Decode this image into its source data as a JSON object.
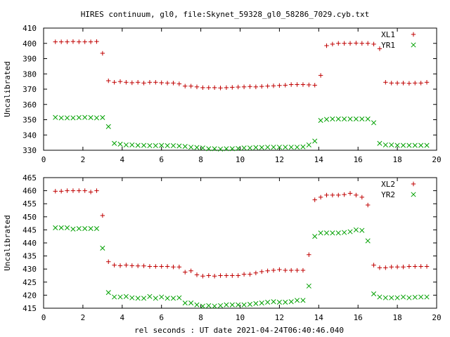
{
  "title": "HIRES continuum, gl0, file:Skynet_59328_gl0_58286_7029.cyb.txt",
  "xlabel": "rel seconds : UT date 2021-04-24T06:40:46.040",
  "colors": {
    "red": "#c00000",
    "green": "#00a000"
  },
  "chart_data": [
    {
      "type": "scatter",
      "ylabel": "Uncalibrated",
      "xlim": [
        0,
        20
      ],
      "ylim": [
        330,
        410
      ],
      "xticks": [
        "0",
        "2",
        "4",
        "6",
        "8",
        "10",
        "12",
        "14",
        "16",
        "18",
        "20"
      ],
      "yticks": [
        "330",
        "340",
        "350",
        "360",
        "370",
        "380",
        "390",
        "400",
        "410"
      ],
      "legend_position": "top-right",
      "series": [
        {
          "name": "XL1",
          "marker": "plus",
          "color": "red",
          "x": [
            0.6,
            0.9,
            1.2,
            1.5,
            1.8,
            2.1,
            2.4,
            2.7,
            3.0,
            3.3,
            3.6,
            3.9,
            4.2,
            4.5,
            4.8,
            5.1,
            5.4,
            5.7,
            6.0,
            6.3,
            6.6,
            6.9,
            7.2,
            7.5,
            7.8,
            8.1,
            8.4,
            8.7,
            9.0,
            9.3,
            9.6,
            9.9,
            10.2,
            10.5,
            10.8,
            11.1,
            11.4,
            11.7,
            12.0,
            12.3,
            12.6,
            12.9,
            13.2,
            13.5,
            13.8,
            14.1,
            14.4,
            14.7,
            15.0,
            15.3,
            15.6,
            15.9,
            16.2,
            16.5,
            16.8,
            17.1,
            17.4,
            17.7,
            18.0,
            18.3,
            18.6,
            18.9,
            19.2,
            19.5
          ],
          "y": [
            401,
            401,
            401,
            401.2,
            401,
            401,
            401,
            401.2,
            393.5,
            375.5,
            374.5,
            375,
            374.5,
            374.2,
            374.5,
            374,
            374.5,
            374.5,
            374.2,
            374,
            374,
            373.5,
            372,
            372,
            371.5,
            371,
            371,
            371,
            370.8,
            371,
            371.2,
            371.4,
            371.5,
            371.7,
            371.5,
            371.8,
            372,
            372.2,
            372.4,
            372.6,
            373,
            373,
            373,
            372.8,
            372.6,
            379,
            398.5,
            399.5,
            400,
            400,
            400,
            400.2,
            400,
            400,
            399.5,
            396.5,
            374.5,
            374,
            374,
            374,
            373.8,
            374,
            374,
            374.5
          ]
        },
        {
          "name": "YR1",
          "marker": "cross",
          "color": "green",
          "x": [
            0.6,
            0.9,
            1.2,
            1.5,
            1.8,
            2.1,
            2.4,
            2.7,
            3.0,
            3.3,
            3.6,
            3.9,
            4.2,
            4.5,
            4.8,
            5.1,
            5.4,
            5.7,
            6.0,
            6.3,
            6.6,
            6.9,
            7.2,
            7.5,
            7.8,
            8.1,
            8.4,
            8.7,
            9.0,
            9.3,
            9.6,
            9.9,
            10.2,
            10.5,
            10.8,
            11.1,
            11.4,
            11.7,
            12.0,
            12.3,
            12.6,
            12.9,
            13.2,
            13.5,
            13.8,
            14.1,
            14.4,
            14.7,
            15.0,
            15.3,
            15.6,
            15.9,
            16.2,
            16.5,
            16.8,
            17.1,
            17.4,
            17.7,
            18.0,
            18.3,
            18.6,
            18.9,
            19.2,
            19.5
          ],
          "y": [
            351.5,
            351.2,
            351.2,
            351.2,
            351.4,
            351.5,
            351.4,
            351.2,
            351.4,
            345.5,
            334.5,
            334,
            333.5,
            333.5,
            333.2,
            333.2,
            333,
            333,
            333.2,
            333,
            333,
            332.8,
            332.5,
            332,
            331.8,
            331.5,
            331,
            331,
            330.8,
            331,
            331,
            331.2,
            331.5,
            331.5,
            331.8,
            331.8,
            332,
            332,
            332,
            332,
            332,
            332,
            332.2,
            333.5,
            336,
            349.5,
            350.2,
            350.5,
            350.5,
            350.5,
            350.5,
            350.5,
            350.5,
            350.5,
            348,
            334.5,
            333.5,
            333.5,
            333.2,
            333.2,
            333.2,
            333.2,
            333.2,
            333.2
          ]
        }
      ]
    },
    {
      "type": "scatter",
      "ylabel": "Uncalibrated",
      "xlim": [
        0,
        20
      ],
      "ylim": [
        415,
        465
      ],
      "xticks": [
        "0",
        "2",
        "4",
        "6",
        "8",
        "10",
        "12",
        "14",
        "16",
        "18",
        "20"
      ],
      "yticks": [
        "415",
        "420",
        "425",
        "430",
        "435",
        "440",
        "445",
        "450",
        "455",
        "460",
        "465"
      ],
      "legend_position": "top-right",
      "series": [
        {
          "name": "XL2",
          "marker": "plus",
          "color": "red",
          "x": [
            0.6,
            0.9,
            1.2,
            1.5,
            1.8,
            2.1,
            2.4,
            2.7,
            3.0,
            3.3,
            3.6,
            3.9,
            4.2,
            4.5,
            4.8,
            5.1,
            5.4,
            5.7,
            6.0,
            6.3,
            6.6,
            6.9,
            7.2,
            7.5,
            7.8,
            8.1,
            8.4,
            8.7,
            9.0,
            9.3,
            9.6,
            9.9,
            10.2,
            10.5,
            10.8,
            11.1,
            11.4,
            11.7,
            12.0,
            12.3,
            12.6,
            12.9,
            13.2,
            13.5,
            13.8,
            14.1,
            14.4,
            14.7,
            15.0,
            15.3,
            15.6,
            15.9,
            16.2,
            16.5,
            16.8,
            17.1,
            17.4,
            17.7,
            18.0,
            18.3,
            18.6,
            18.9,
            19.2,
            19.5
          ],
          "y": [
            459.8,
            459.8,
            460,
            460,
            460,
            460,
            459.5,
            460,
            450.5,
            432.8,
            431.5,
            431.3,
            431.5,
            431.3,
            431.2,
            431.2,
            431,
            431,
            431,
            431,
            430.8,
            430.8,
            428.8,
            429.3,
            427.8,
            427.3,
            427.5,
            427.3,
            427.5,
            427.5,
            427.5,
            427.5,
            428,
            428,
            428.5,
            429,
            429.3,
            429.5,
            429.8,
            429.5,
            429.5,
            429.5,
            429.5,
            435.5,
            456.5,
            457.5,
            458.3,
            458.3,
            458.3,
            458.5,
            459,
            458.3,
            457.5,
            454.5,
            431.5,
            430.5,
            430.5,
            430.8,
            430.8,
            430.8,
            431,
            431,
            431,
            431
          ]
        },
        {
          "name": "YR2",
          "marker": "cross",
          "color": "green",
          "x": [
            0.6,
            0.9,
            1.2,
            1.5,
            1.8,
            2.1,
            2.4,
            2.7,
            3.0,
            3.3,
            3.6,
            3.9,
            4.2,
            4.5,
            4.8,
            5.1,
            5.4,
            5.7,
            6.0,
            6.3,
            6.6,
            6.9,
            7.2,
            7.5,
            7.8,
            8.1,
            8.4,
            8.7,
            9.0,
            9.3,
            9.6,
            9.9,
            10.2,
            10.5,
            10.8,
            11.1,
            11.4,
            11.7,
            12.0,
            12.3,
            12.6,
            12.9,
            13.2,
            13.5,
            13.8,
            14.1,
            14.4,
            14.7,
            15.0,
            15.3,
            15.6,
            15.9,
            16.2,
            16.5,
            16.8,
            17.1,
            17.4,
            17.7,
            18.0,
            18.3,
            18.6,
            18.9,
            19.2,
            19.5
          ],
          "y": [
            445.8,
            445.8,
            445.8,
            445.3,
            445.5,
            445.5,
            445.5,
            445.5,
            438,
            421,
            419.3,
            419.3,
            419.5,
            419,
            418.8,
            418.8,
            419.5,
            418.8,
            419.3,
            418.8,
            418.8,
            419,
            417,
            417,
            416.3,
            415.8,
            416,
            415.8,
            416,
            416.3,
            416.3,
            416.3,
            416.3,
            416.5,
            416.8,
            417,
            417.3,
            417.5,
            417.3,
            417.3,
            417.5,
            418,
            418,
            423.5,
            442.5,
            443.8,
            443.8,
            443.8,
            443.8,
            444,
            444.3,
            445,
            444.8,
            440.8,
            420.5,
            419.3,
            419,
            419,
            419,
            419.3,
            419,
            419.2,
            419.3,
            419.3
          ]
        }
      ]
    }
  ]
}
